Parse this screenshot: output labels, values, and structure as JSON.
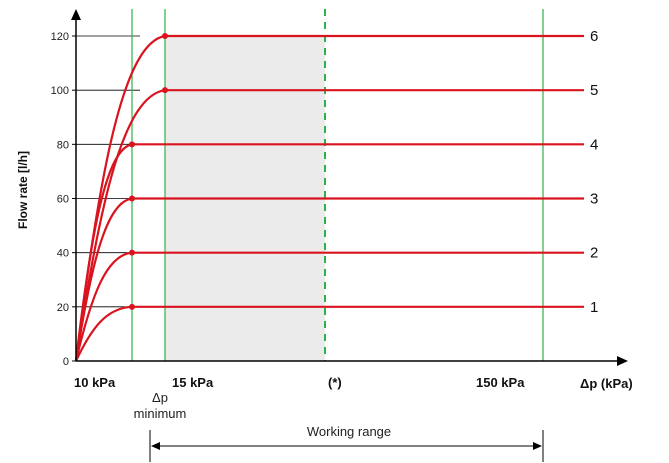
{
  "chart_data": {
    "type": "line",
    "ylabel": "Flow rate [l/h]",
    "xlabel": "Δp (kPa)",
    "ylim": [
      0,
      120
    ],
    "yticks": [
      0,
      20,
      40,
      60,
      80,
      100,
      120
    ],
    "x_markers": [
      {
        "label": "10 kPa"
      },
      {
        "label": "15 kPa"
      },
      {
        "label": "(*)"
      },
      {
        "label": "150 kPa"
      }
    ],
    "min_label": [
      "Δp",
      "minimum"
    ],
    "working_range_label": "Working range",
    "series": [
      {
        "name": "1",
        "max_flow": 20
      },
      {
        "name": "2",
        "max_flow": 40
      },
      {
        "name": "3",
        "max_flow": 60
      },
      {
        "name": "4",
        "max_flow": 80
      },
      {
        "name": "5",
        "max_flow": 100
      },
      {
        "name": "6",
        "max_flow": 120
      }
    ],
    "colors": {
      "curve": "#d9141e",
      "vline": "#2eb04b",
      "shade": "#ebebeb",
      "axis": "#000000"
    }
  }
}
